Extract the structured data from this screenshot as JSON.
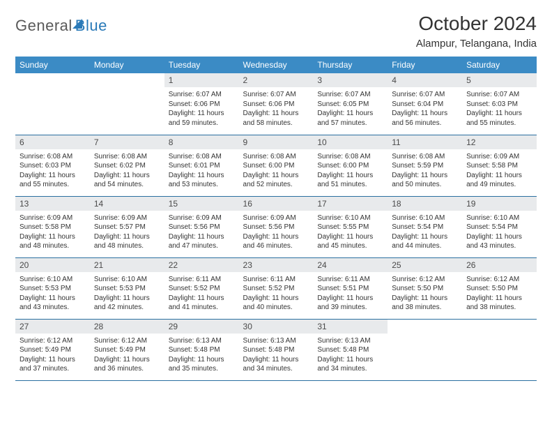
{
  "brand": {
    "part1": "General",
    "part2": "Blue"
  },
  "title": "October 2024",
  "location": "Alampur, Telangana, India",
  "colors": {
    "header_bg": "#3b8bc5",
    "header_text": "#ffffff",
    "daynum_bg": "#e8eaec",
    "row_border": "#2a6fa0",
    "brand_blue": "#2a7ab8",
    "brand_gray": "#5a5a5a",
    "text": "#333333",
    "page_bg": "#ffffff"
  },
  "weekdays": [
    "Sunday",
    "Monday",
    "Tuesday",
    "Wednesday",
    "Thursday",
    "Friday",
    "Saturday"
  ],
  "weeks": [
    [
      null,
      null,
      {
        "n": "1",
        "sr": "6:07 AM",
        "ss": "6:06 PM",
        "dl": "11 hours and 59 minutes."
      },
      {
        "n": "2",
        "sr": "6:07 AM",
        "ss": "6:06 PM",
        "dl": "11 hours and 58 minutes."
      },
      {
        "n": "3",
        "sr": "6:07 AM",
        "ss": "6:05 PM",
        "dl": "11 hours and 57 minutes."
      },
      {
        "n": "4",
        "sr": "6:07 AM",
        "ss": "6:04 PM",
        "dl": "11 hours and 56 minutes."
      },
      {
        "n": "5",
        "sr": "6:07 AM",
        "ss": "6:03 PM",
        "dl": "11 hours and 55 minutes."
      }
    ],
    [
      {
        "n": "6",
        "sr": "6:08 AM",
        "ss": "6:03 PM",
        "dl": "11 hours and 55 minutes."
      },
      {
        "n": "7",
        "sr": "6:08 AM",
        "ss": "6:02 PM",
        "dl": "11 hours and 54 minutes."
      },
      {
        "n": "8",
        "sr": "6:08 AM",
        "ss": "6:01 PM",
        "dl": "11 hours and 53 minutes."
      },
      {
        "n": "9",
        "sr": "6:08 AM",
        "ss": "6:00 PM",
        "dl": "11 hours and 52 minutes."
      },
      {
        "n": "10",
        "sr": "6:08 AM",
        "ss": "6:00 PM",
        "dl": "11 hours and 51 minutes."
      },
      {
        "n": "11",
        "sr": "6:08 AM",
        "ss": "5:59 PM",
        "dl": "11 hours and 50 minutes."
      },
      {
        "n": "12",
        "sr": "6:09 AM",
        "ss": "5:58 PM",
        "dl": "11 hours and 49 minutes."
      }
    ],
    [
      {
        "n": "13",
        "sr": "6:09 AM",
        "ss": "5:58 PM",
        "dl": "11 hours and 48 minutes."
      },
      {
        "n": "14",
        "sr": "6:09 AM",
        "ss": "5:57 PM",
        "dl": "11 hours and 48 minutes."
      },
      {
        "n": "15",
        "sr": "6:09 AM",
        "ss": "5:56 PM",
        "dl": "11 hours and 47 minutes."
      },
      {
        "n": "16",
        "sr": "6:09 AM",
        "ss": "5:56 PM",
        "dl": "11 hours and 46 minutes."
      },
      {
        "n": "17",
        "sr": "6:10 AM",
        "ss": "5:55 PM",
        "dl": "11 hours and 45 minutes."
      },
      {
        "n": "18",
        "sr": "6:10 AM",
        "ss": "5:54 PM",
        "dl": "11 hours and 44 minutes."
      },
      {
        "n": "19",
        "sr": "6:10 AM",
        "ss": "5:54 PM",
        "dl": "11 hours and 43 minutes."
      }
    ],
    [
      {
        "n": "20",
        "sr": "6:10 AM",
        "ss": "5:53 PM",
        "dl": "11 hours and 43 minutes."
      },
      {
        "n": "21",
        "sr": "6:10 AM",
        "ss": "5:53 PM",
        "dl": "11 hours and 42 minutes."
      },
      {
        "n": "22",
        "sr": "6:11 AM",
        "ss": "5:52 PM",
        "dl": "11 hours and 41 minutes."
      },
      {
        "n": "23",
        "sr": "6:11 AM",
        "ss": "5:52 PM",
        "dl": "11 hours and 40 minutes."
      },
      {
        "n": "24",
        "sr": "6:11 AM",
        "ss": "5:51 PM",
        "dl": "11 hours and 39 minutes."
      },
      {
        "n": "25",
        "sr": "6:12 AM",
        "ss": "5:50 PM",
        "dl": "11 hours and 38 minutes."
      },
      {
        "n": "26",
        "sr": "6:12 AM",
        "ss": "5:50 PM",
        "dl": "11 hours and 38 minutes."
      }
    ],
    [
      {
        "n": "27",
        "sr": "6:12 AM",
        "ss": "5:49 PM",
        "dl": "11 hours and 37 minutes."
      },
      {
        "n": "28",
        "sr": "6:12 AM",
        "ss": "5:49 PM",
        "dl": "11 hours and 36 minutes."
      },
      {
        "n": "29",
        "sr": "6:13 AM",
        "ss": "5:48 PM",
        "dl": "11 hours and 35 minutes."
      },
      {
        "n": "30",
        "sr": "6:13 AM",
        "ss": "5:48 PM",
        "dl": "11 hours and 34 minutes."
      },
      {
        "n": "31",
        "sr": "6:13 AM",
        "ss": "5:48 PM",
        "dl": "11 hours and 34 minutes."
      },
      null,
      null
    ]
  ],
  "labels": {
    "sunrise": "Sunrise:",
    "sunset": "Sunset:",
    "daylight": "Daylight:"
  }
}
